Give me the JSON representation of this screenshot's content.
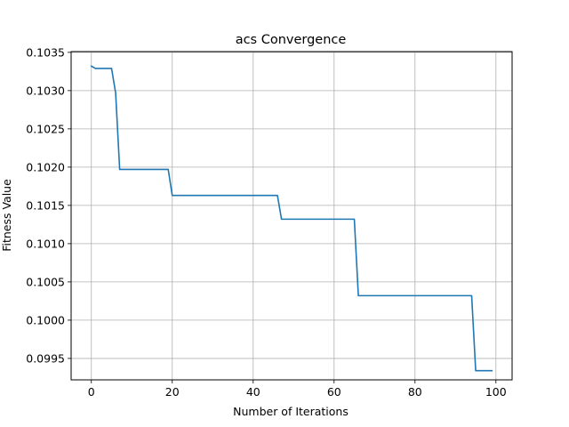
{
  "chart_data": {
    "type": "line",
    "title": "acs Convergence",
    "xlabel": "Number of Iterations",
    "ylabel": "Fitness Value",
    "xlim": [
      -5,
      104
    ],
    "ylim": [
      0.09922,
      0.10351
    ],
    "x_ticks": [
      0,
      20,
      40,
      60,
      80,
      100
    ],
    "y_ticks": [
      0.0995,
      0.1,
      0.1005,
      0.101,
      0.1015,
      0.102,
      0.1025,
      0.103,
      0.1035
    ],
    "x_tick_labels": [
      "0",
      "20",
      "40",
      "60",
      "80",
      "100"
    ],
    "y_tick_labels": [
      "0.0995",
      "0.1000",
      "0.1005",
      "0.1010",
      "0.1015",
      "0.1020",
      "0.1025",
      "0.1030",
      "0.1035"
    ],
    "grid": true,
    "series": [
      {
        "color": "#1f77b4",
        "x": [
          0,
          1,
          5,
          6,
          7,
          19,
          20,
          46,
          47,
          65,
          66,
          94,
          95,
          99
        ],
        "values": [
          0.10332,
          0.10329,
          0.10329,
          0.10297,
          0.10197,
          0.10197,
          0.10163,
          0.10163,
          0.10132,
          0.10132,
          0.10032,
          0.10032,
          0.09934,
          0.09934
        ]
      }
    ]
  }
}
